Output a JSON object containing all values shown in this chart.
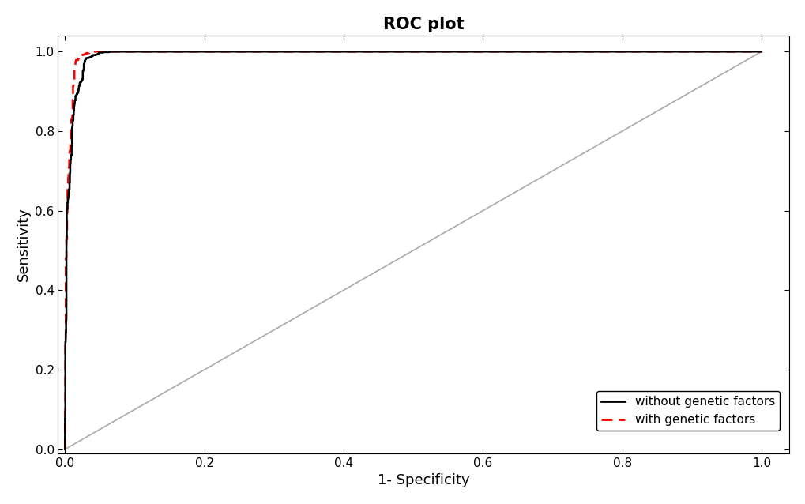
{
  "title": "ROC plot",
  "xlabel": "1- Specificity",
  "ylabel": "Sensitivity",
  "title_fontsize": 15,
  "axis_fontsize": 13,
  "tick_fontsize": 11,
  "legend_fontsize": 11,
  "xlim": [
    -0.01,
    1.04
  ],
  "ylim": [
    -0.01,
    1.04
  ],
  "background_color": "#ffffff",
  "diag_color": "#aaaaaa",
  "curve1_color": "#000000",
  "curve2_color": "#ff0000",
  "legend_labels": [
    "without genetic factors",
    "with genetic factors"
  ]
}
